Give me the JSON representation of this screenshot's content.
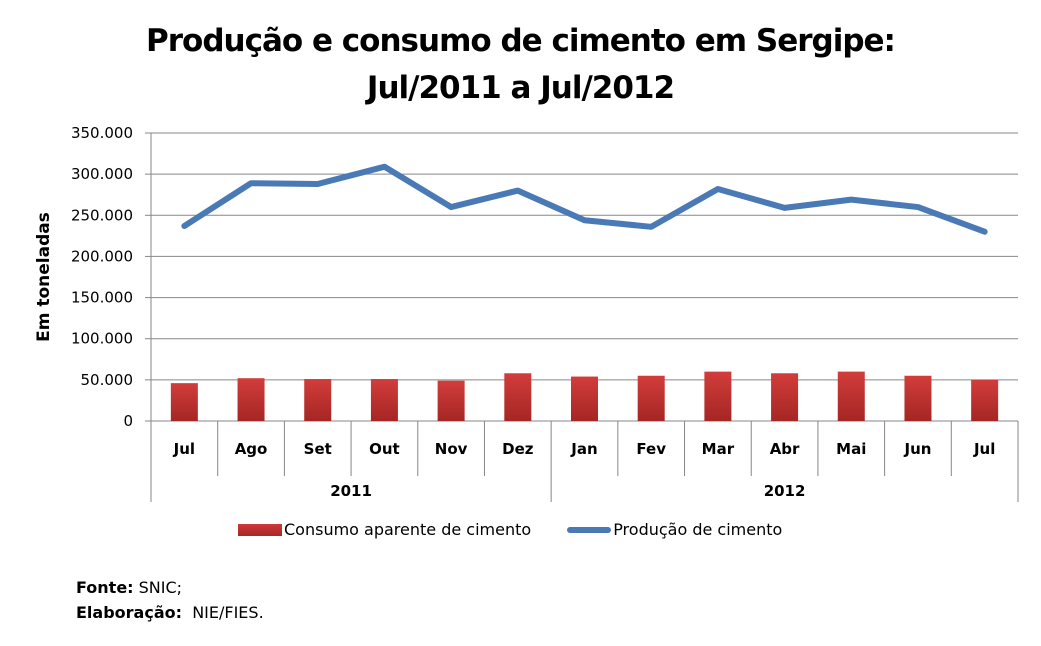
{
  "title_lines": [
    "Produção e consumo de cimento em Sergipe:",
    "Jul/2011 a Jul/2012"
  ],
  "chart_data": {
    "type": "bar+line",
    "title": "Produção e consumo de cimento em Sergipe: Jul/2011 a Jul/2012",
    "xlabel": "",
    "ylabel": "Em toneladas",
    "ylim": [
      0,
      350000
    ],
    "yticks": [
      0,
      50000,
      100000,
      150000,
      200000,
      250000,
      300000,
      350000
    ],
    "ytick_labels": [
      "0",
      "50.000",
      "100.000",
      "150.000",
      "200.000",
      "250.000",
      "300.000",
      "350.000"
    ],
    "grid": true,
    "categories": [
      "Jul",
      "Ago",
      "Set",
      "Out",
      "Nov",
      "Dez",
      "Jan",
      "Fev",
      "Mar",
      "Abr",
      "Mai",
      "Jun",
      "Jul"
    ],
    "groups": [
      {
        "label": "2011",
        "count": 6
      },
      {
        "label": "2012",
        "count": 7
      }
    ],
    "series": [
      {
        "name": "Consumo aparente de cimento",
        "type": "bar",
        "color": "#c0312f",
        "values": [
          46000,
          52000,
          51000,
          51000,
          49000,
          58000,
          54000,
          55000,
          60000,
          58000,
          60000,
          55000,
          50000
        ]
      },
      {
        "name": "Produção de cimento",
        "type": "line",
        "color": "#4a7ab5",
        "values": [
          237000,
          289000,
          288000,
          309000,
          260000,
          280000,
          244000,
          236000,
          282000,
          259000,
          269000,
          260000,
          230000
        ]
      }
    ],
    "legend_position": "bottom"
  },
  "footer": {
    "source_label": "Fonte:",
    "source_value": " SNIC;",
    "elaboration_label": "Elaboração:",
    "elaboration_value": "  NIE/FIES."
  }
}
